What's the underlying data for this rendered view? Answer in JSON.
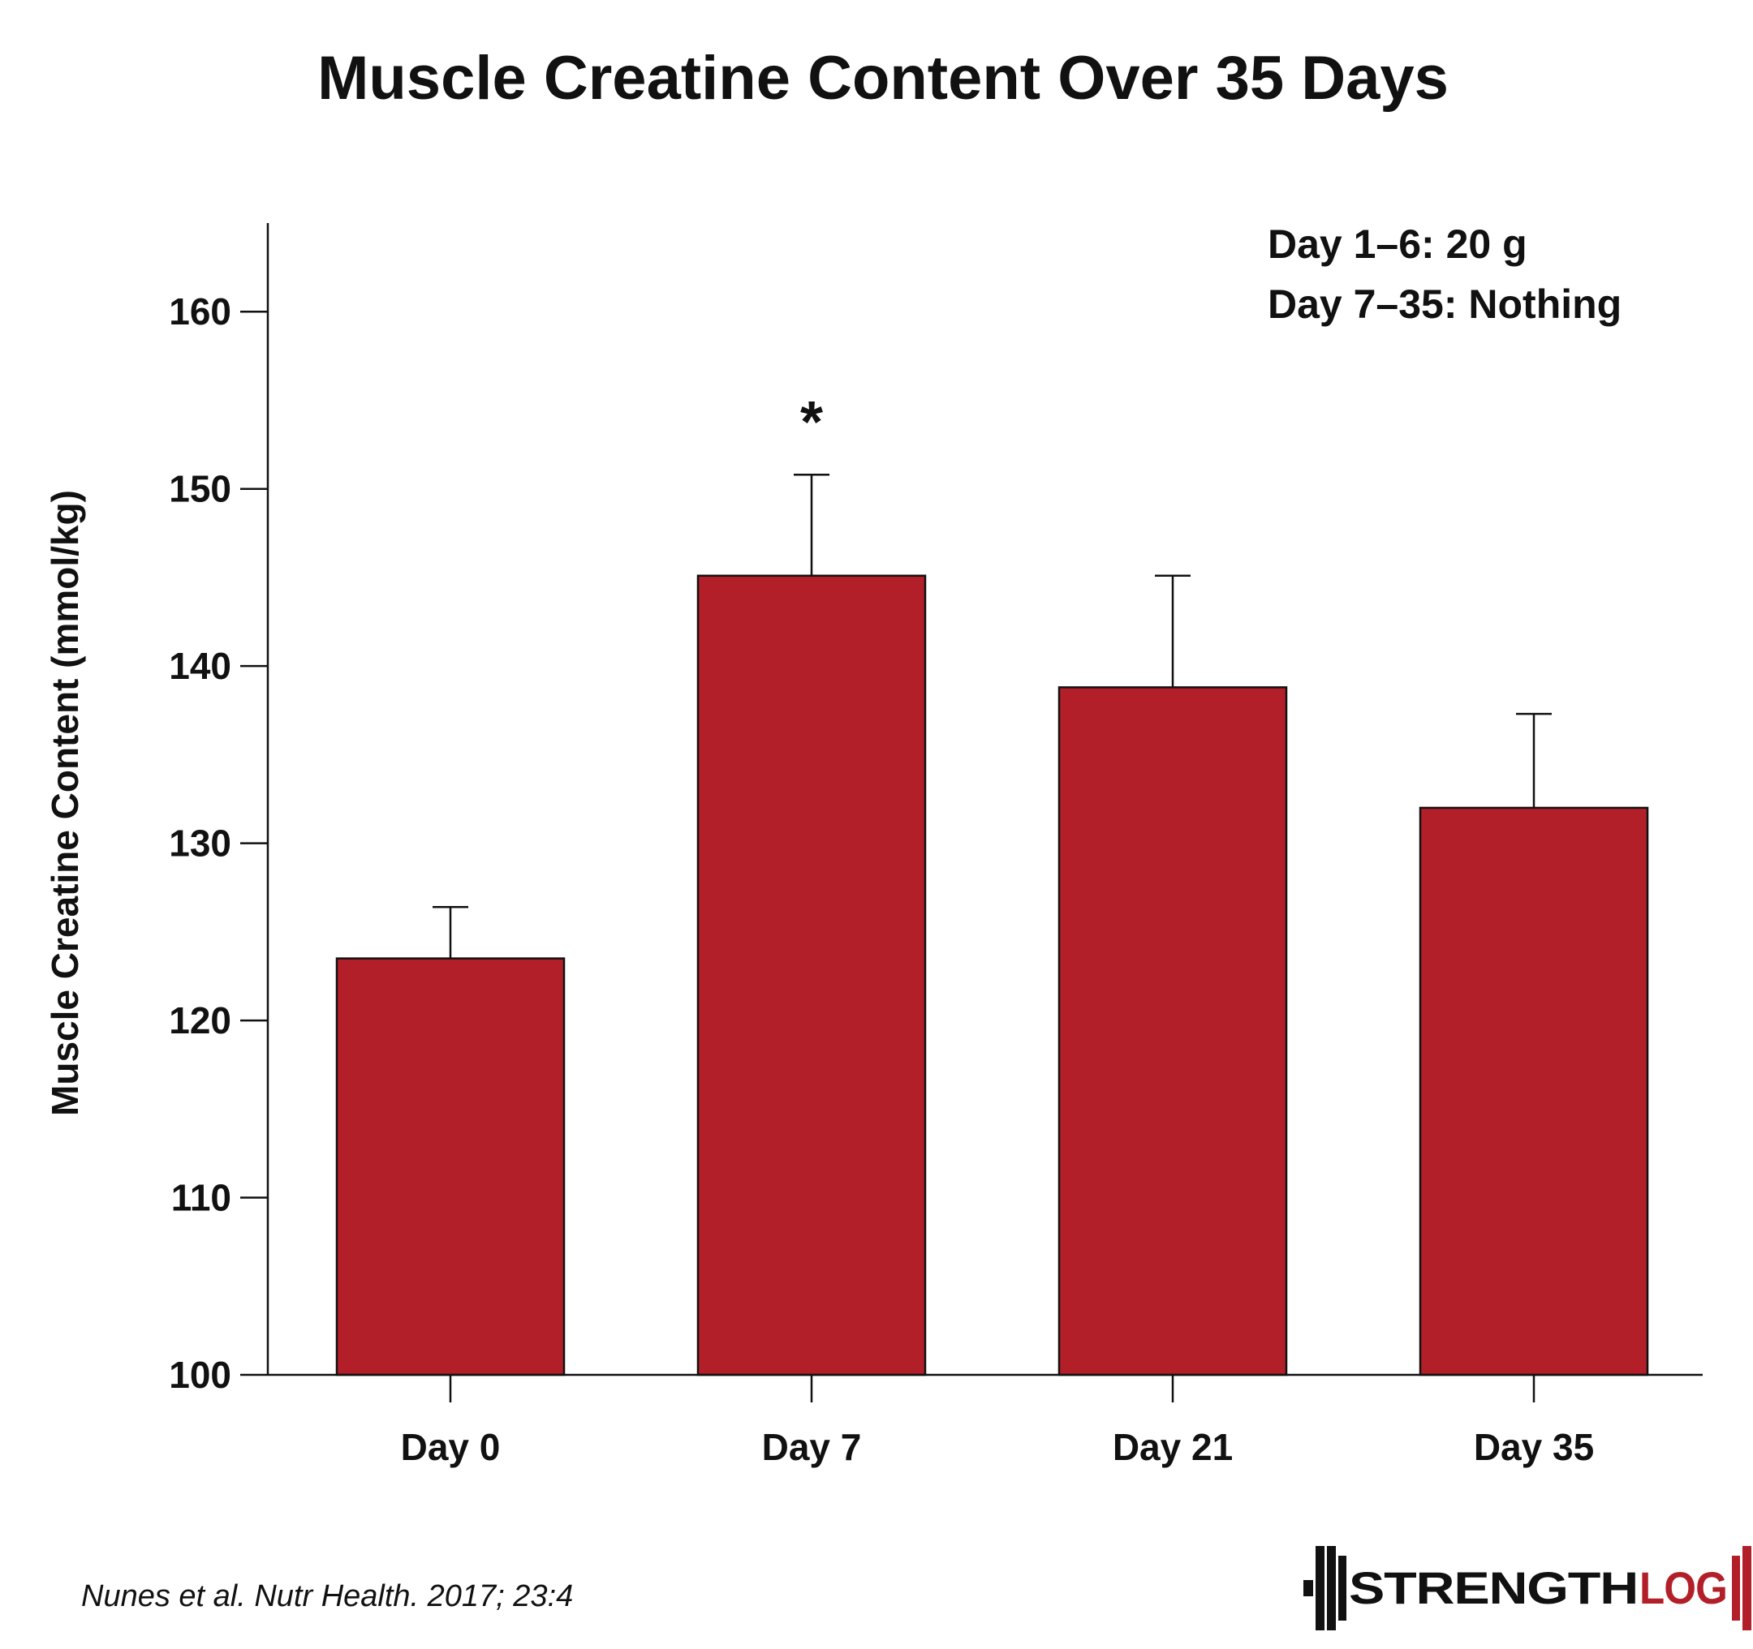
{
  "chart_data": {
    "type": "bar",
    "title": "Muscle Creatine Content Over 35 Days",
    "ylabel": "Muscle Creatine Content (mmol/kg)",
    "xlabel": "",
    "categories": [
      "Day 0",
      "Day 7",
      "Day 21",
      "Day 35"
    ],
    "values": [
      123.5,
      145.1,
      138.8,
      132.0
    ],
    "error_upper": [
      126.4,
      150.8,
      145.1,
      137.3
    ],
    "significance_markers": [
      "",
      "*",
      "",
      ""
    ],
    "ylim": [
      100,
      165
    ],
    "yticks": [
      100,
      110,
      120,
      130,
      140,
      150,
      160
    ],
    "grid": false,
    "bar_color": "#b31f29",
    "annotations": [
      "Day 1–6: 20 g",
      "Day 7–35: Nothing"
    ]
  },
  "citation": "Nunes et al. Nutr Health. 2017; 23:4",
  "logo": {
    "text_strength": "STRENGTH",
    "text_log": "LOG",
    "dark_color": "#111111",
    "accent_color": "#b31f29"
  }
}
